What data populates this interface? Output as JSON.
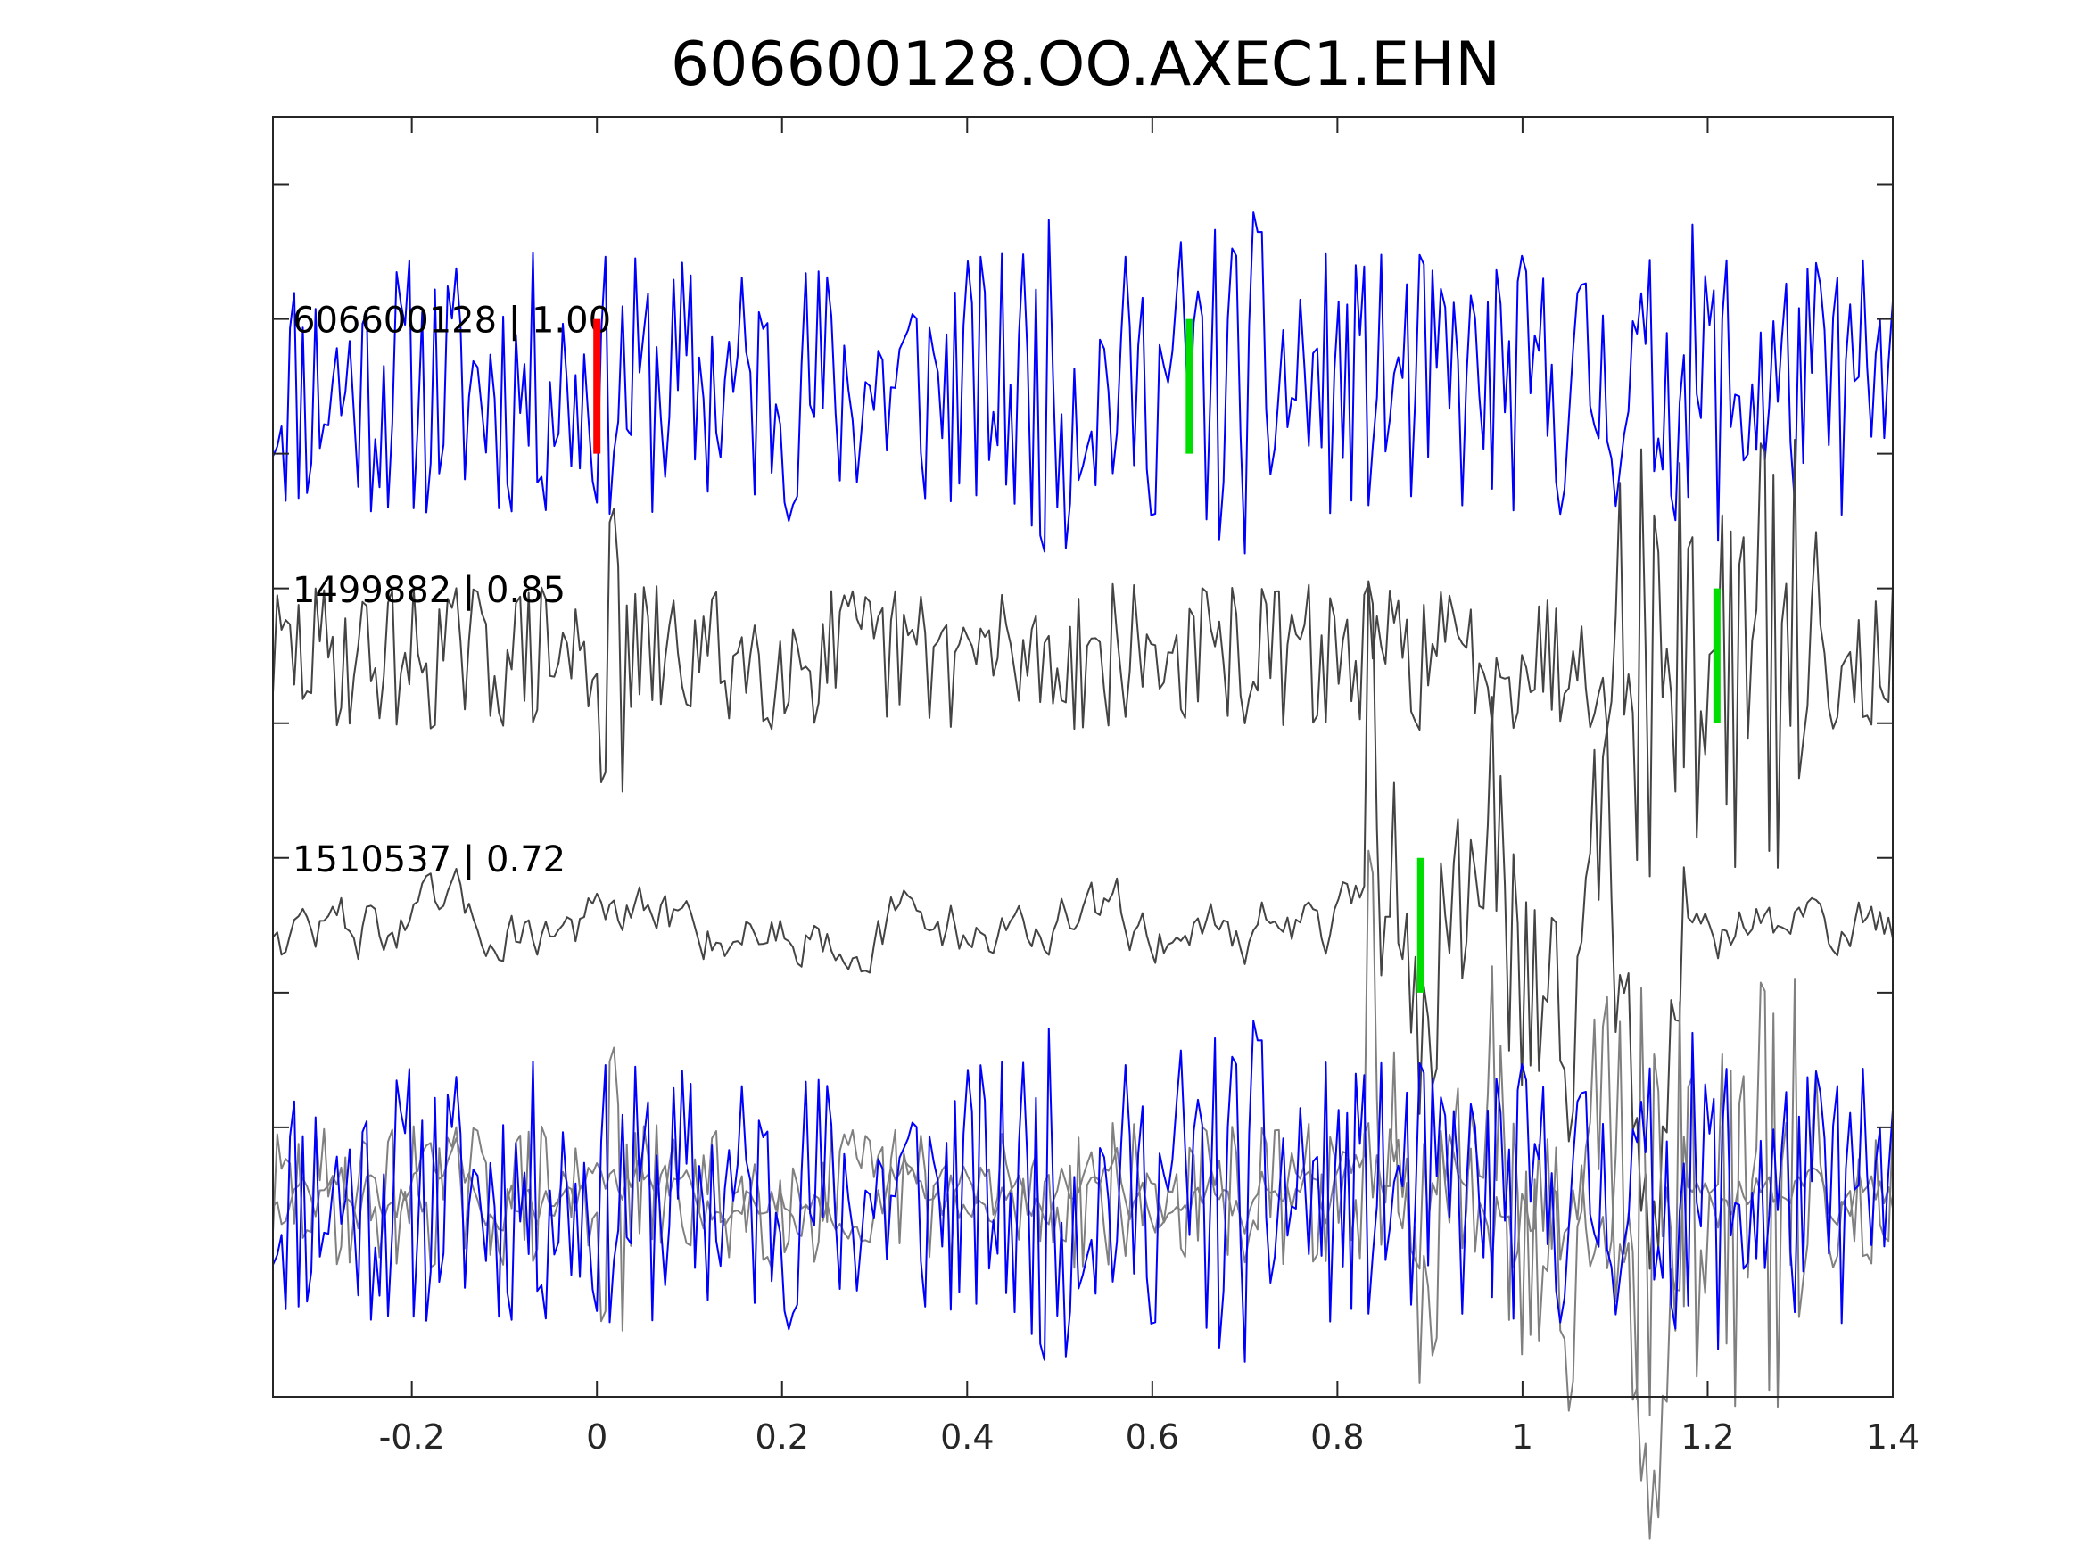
{
  "chart_data": {
    "type": "line",
    "title": "606600128.OO.AXEC1.EHN",
    "xlabel": "",
    "ylabel": "",
    "xlim": [
      -0.35,
      1.4
    ],
    "xticks": [
      -0.2,
      0,
      0.2,
      0.4,
      0.6,
      0.8,
      1,
      1.2,
      1.4
    ],
    "xtick_labels": [
      "-0.2",
      "0",
      "0.2",
      "0.4",
      "0.6",
      "0.8",
      "1",
      "1.2",
      "1.4"
    ],
    "ylim": [
      -1.5,
      8
    ],
    "yticks": [
      0.5,
      1.5,
      2.5,
      3.5,
      4.5,
      5.5,
      6.5,
      7.5
    ],
    "grid": false,
    "colors": {
      "template": "#0000ff",
      "neighbor": "#444444",
      "overlay_neighbor": "#808080",
      "reference_pick": "#ff0000",
      "matched_pick": "#00dd00",
      "axes": "#262626"
    },
    "trace_spec": [
      {
        "label": "606600128 | 1.00",
        "offset": 6,
        "color": "#0000ff",
        "amp": 1.0,
        "seed": 11,
        "bursts": [
          [
            0.45,
            0.52,
            0.25
          ],
          [
            0.62,
            0.76,
            0.3
          ],
          [
            1.18,
            1.26,
            0.22
          ]
        ]
      },
      {
        "label": "1499882 | 0.85",
        "offset": 4,
        "color": "#444444",
        "amp": 0.55,
        "seed": 29,
        "bursts": [
          [
            0.0,
            0.04,
            0.6
          ],
          [
            1.1,
            1.32,
            1.1
          ]
        ]
      },
      {
        "label": "1510537 | 0.72",
        "offset": 2,
        "color": "#444444",
        "amp": 0.3,
        "seed": 47,
        "smooth": true,
        "bursts": [
          [
            0.83,
            1.18,
            1.8
          ]
        ]
      }
    ],
    "picks": [
      {
        "x": 0.0,
        "offset": 6,
        "color": "reference"
      },
      {
        "x": 0.64,
        "offset": 6,
        "color": "matched"
      },
      {
        "x": 1.21,
        "offset": 4,
        "color": "matched"
      },
      {
        "x": 0.89,
        "offset": 2,
        "color": "matched"
      }
    ],
    "overlay_offset": 0
  }
}
